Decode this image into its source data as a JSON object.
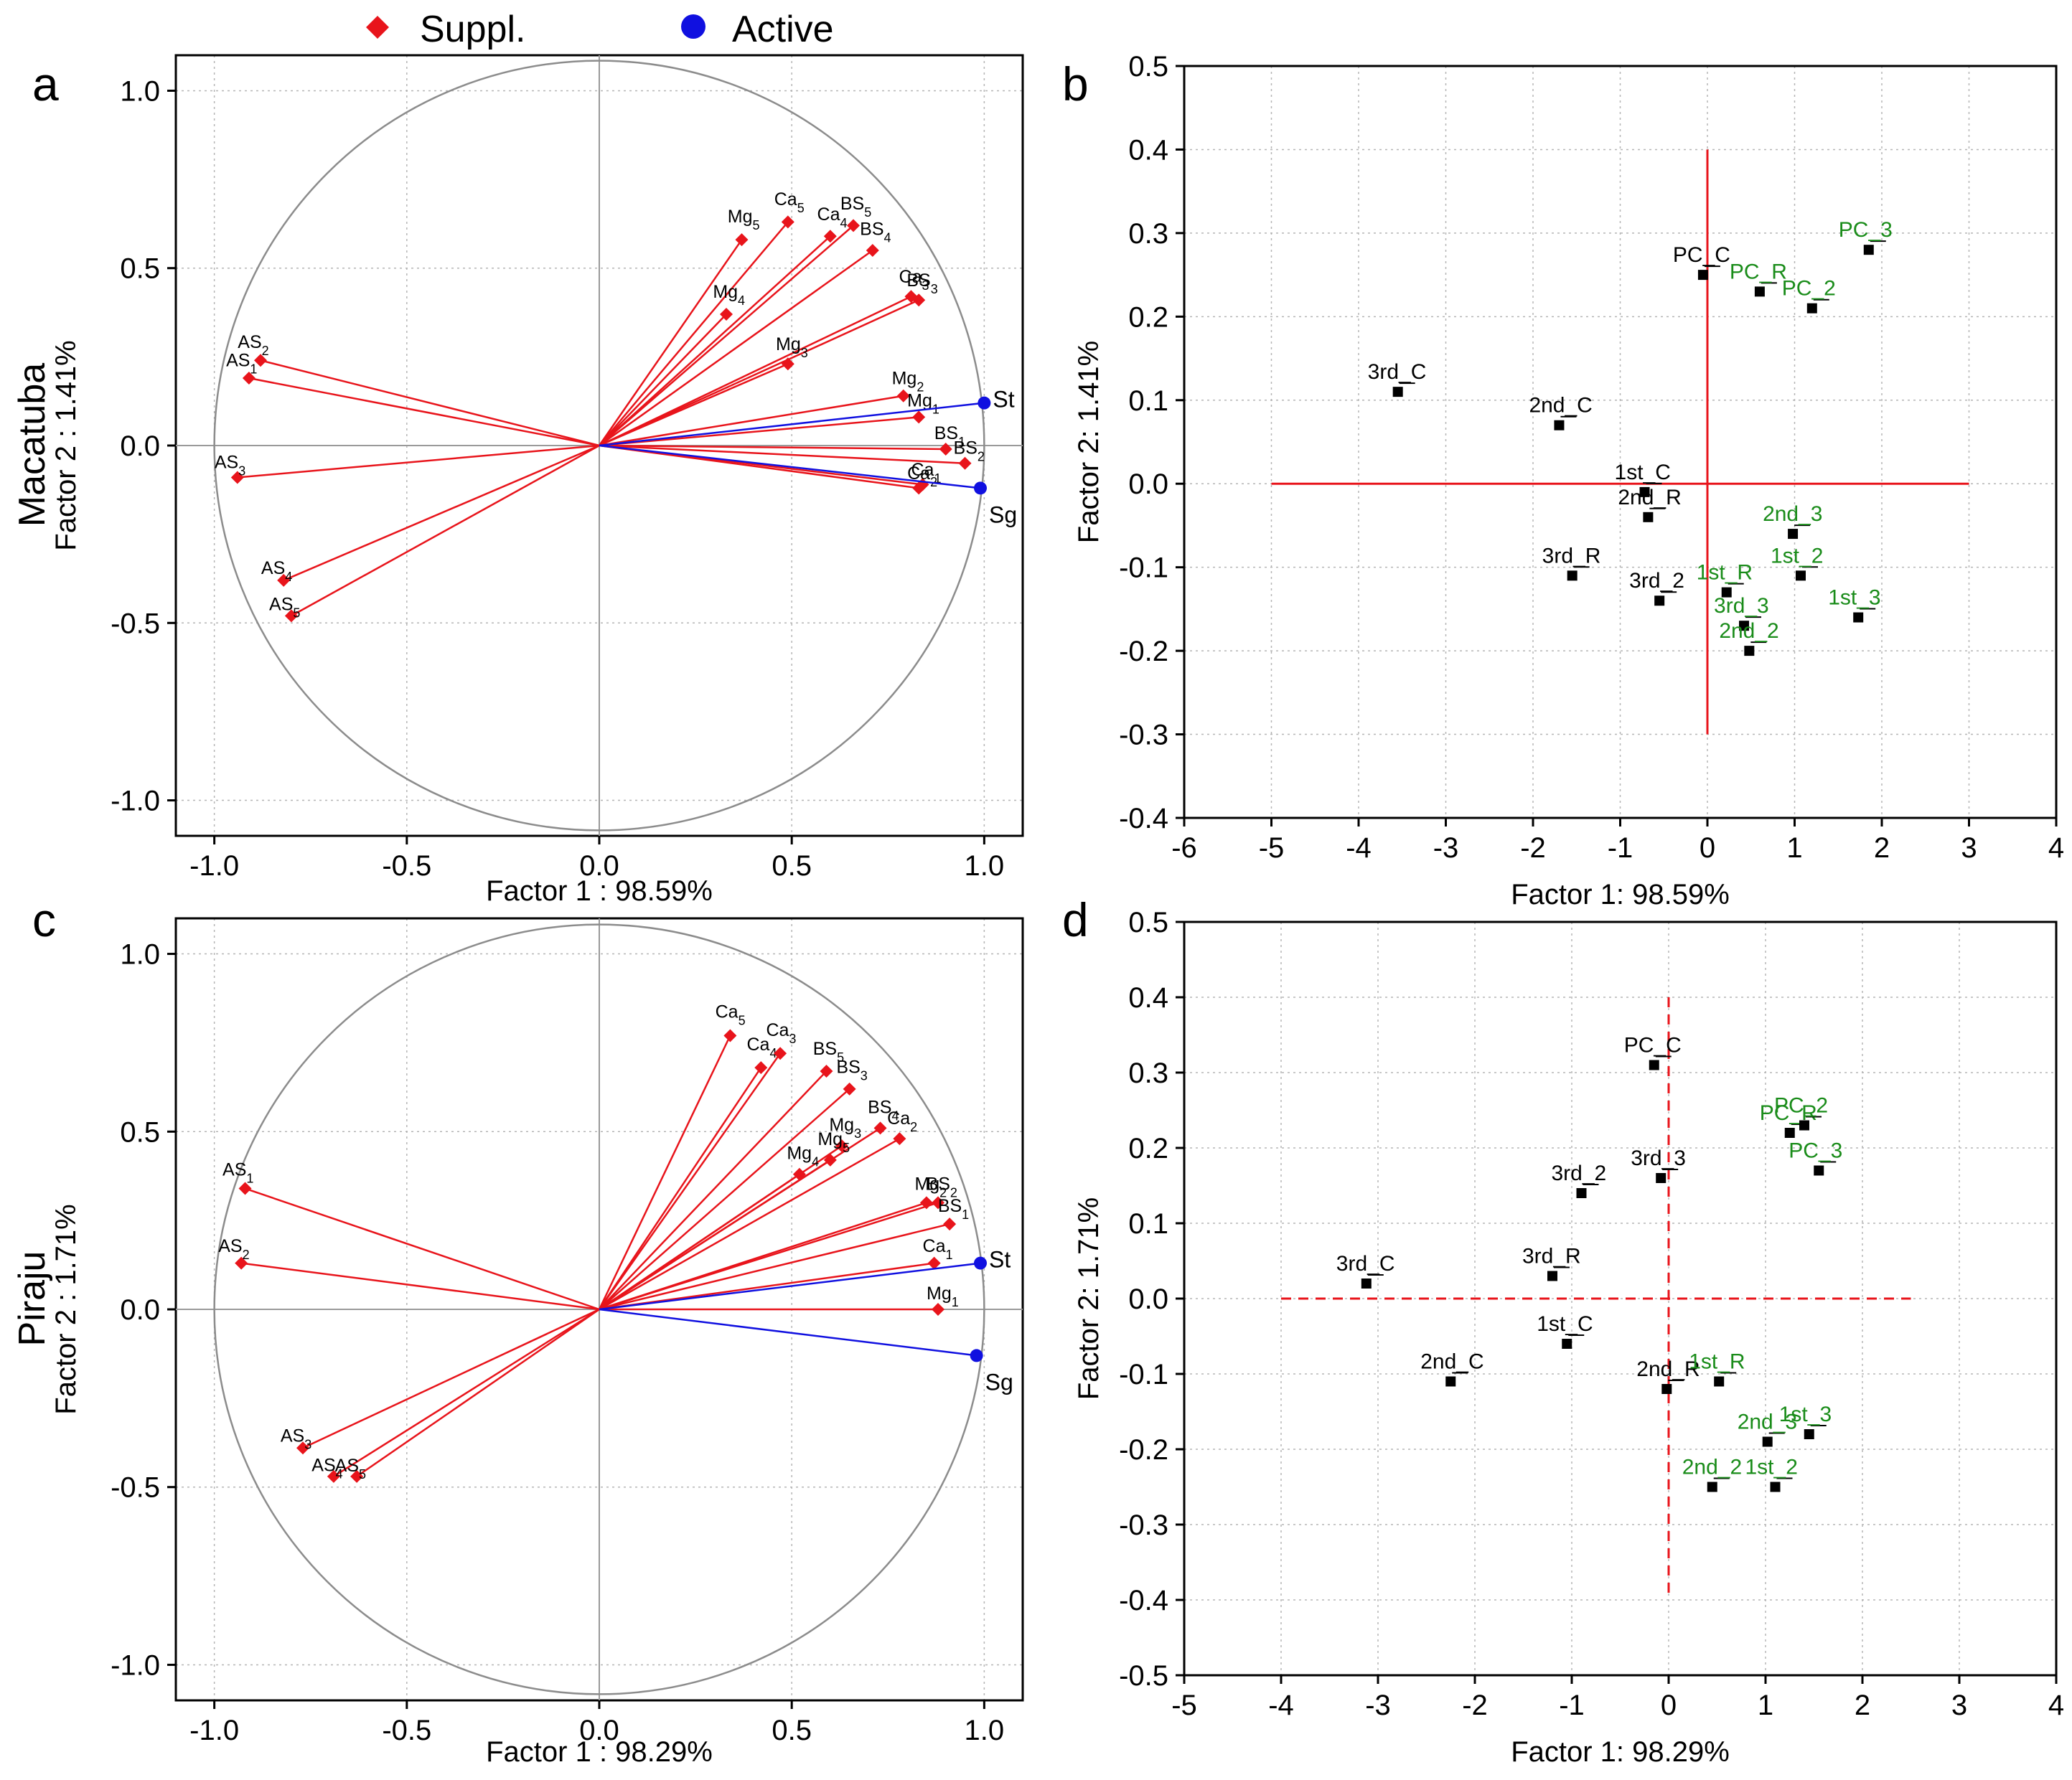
{
  "legend": {
    "supplementary_label": "Suppl.",
    "active_label": "Active",
    "supplementary_color": "#e8141b",
    "active_color": "#1010e0"
  },
  "colors": {
    "red": "#e8141b",
    "blue": "#1010e0",
    "green": "#1a8c1a",
    "black": "#000000"
  },
  "rows": {
    "top": "Macatuba",
    "bottom": "Piraju"
  },
  "panels": {
    "a": {
      "letter": "a"
    },
    "b": {
      "letter": "b"
    },
    "c": {
      "letter": "c"
    },
    "d": {
      "letter": "d"
    }
  },
  "chart_data": [
    {
      "panel": "a",
      "type": "scatter",
      "subtype": "correlation-circle",
      "xlabel": "Factor 1 : 98.59%",
      "ylabel": "Factor 2 :  1.41%",
      "xlim": [
        -1.1,
        1.1
      ],
      "ylim": [
        -1.1,
        1.1
      ],
      "xticks": [
        "-1.0",
        "-0.5",
        "0.0",
        "0.5",
        "1.0"
      ],
      "yticks": [
        "1.0",
        "0.5",
        "0.0",
        "-0.5",
        "-1.0"
      ],
      "active": [
        {
          "name": "St",
          "x": 1.0,
          "y": 0.12
        },
        {
          "name": "Sg",
          "x": 0.99,
          "y": -0.12
        }
      ],
      "supplementary": [
        {
          "name": "AS",
          "sub": "2",
          "x": -0.88,
          "y": 0.24
        },
        {
          "name": "AS",
          "sub": "1",
          "x": -0.91,
          "y": 0.19
        },
        {
          "name": "AS",
          "sub": "3",
          "x": -0.94,
          "y": -0.09
        },
        {
          "name": "AS",
          "sub": "4",
          "x": -0.82,
          "y": -0.38
        },
        {
          "name": "AS",
          "sub": "5",
          "x": -0.8,
          "y": -0.48
        },
        {
          "name": "Mg",
          "sub": "5",
          "x": 0.37,
          "y": 0.58
        },
        {
          "name": "Ca",
          "sub": "5",
          "x": 0.49,
          "y": 0.63
        },
        {
          "name": "Ca",
          "sub": "4",
          "x": 0.6,
          "y": 0.59
        },
        {
          "name": "BS",
          "sub": "5",
          "x": 0.66,
          "y": 0.62
        },
        {
          "name": "BS",
          "sub": "4",
          "x": 0.71,
          "y": 0.55
        },
        {
          "name": "Mg",
          "sub": "4",
          "x": 0.33,
          "y": 0.37
        },
        {
          "name": "Ca",
          "sub": "3",
          "x": 0.81,
          "y": 0.42
        },
        {
          "name": "BS",
          "sub": "3",
          "x": 0.83,
          "y": 0.41
        },
        {
          "name": "Mg",
          "sub": "3",
          "x": 0.49,
          "y": 0.23
        },
        {
          "name": "Mg",
          "sub": "2",
          "x": 0.79,
          "y": 0.14
        },
        {
          "name": "Mg",
          "sub": "1",
          "x": 0.83,
          "y": 0.08
        },
        {
          "name": "BS",
          "sub": "1",
          "x": 0.9,
          "y": -0.01
        },
        {
          "name": "BS",
          "sub": "2",
          "x": 0.95,
          "y": -0.05
        },
        {
          "name": "Ca",
          "sub": "1",
          "x": 0.84,
          "y": -0.11
        },
        {
          "name": "Ca",
          "sub": "2",
          "x": 0.83,
          "y": -0.12
        }
      ]
    },
    {
      "panel": "b",
      "type": "scatter",
      "xlabel": "Factor 1: 98.59%",
      "ylabel": "Factor 2:  1.41%",
      "xlim": [
        -6,
        4
      ],
      "ylim": [
        -0.4,
        0.5
      ],
      "xticks": [
        "-6",
        "-5",
        "-4",
        "-3",
        "-2",
        "-1",
        "0",
        "1",
        "2",
        "3",
        "4"
      ],
      "yticks": [
        "0.5",
        "0.4",
        "0.3",
        "0.2",
        "0.1",
        "0.0",
        "-0.1",
        "-0.2",
        "-0.3",
        "-0.4"
      ],
      "reference_lines": {
        "style": "solid",
        "x_range": [
          -5,
          3
        ],
        "y_range": [
          -0.3,
          0.4
        ]
      },
      "points": [
        {
          "name": "PC_C",
          "x": -0.05,
          "y": 0.25,
          "color": "black"
        },
        {
          "name": "PC_R",
          "x": 0.6,
          "y": 0.23,
          "color": "green"
        },
        {
          "name": "PC_3",
          "x": 1.85,
          "y": 0.28,
          "color": "green"
        },
        {
          "name": "PC_2",
          "x": 1.2,
          "y": 0.21,
          "color": "green"
        },
        {
          "name": "3rd_C",
          "x": -3.55,
          "y": 0.11,
          "color": "black"
        },
        {
          "name": "2nd_C",
          "x": -1.7,
          "y": 0.07,
          "color": "black"
        },
        {
          "name": "1st_C",
          "x": -0.72,
          "y": -0.01,
          "color": "black"
        },
        {
          "name": "2nd_R",
          "x": -0.68,
          "y": -0.04,
          "color": "black"
        },
        {
          "name": "3rd_R",
          "x": -1.55,
          "y": -0.11,
          "color": "black"
        },
        {
          "name": "3rd_2",
          "x": -0.55,
          "y": -0.14,
          "color": "black"
        },
        {
          "name": "1st_R",
          "x": 0.22,
          "y": -0.13,
          "color": "green"
        },
        {
          "name": "3rd_3",
          "x": 0.42,
          "y": -0.17,
          "color": "green"
        },
        {
          "name": "2nd_2",
          "x": 0.48,
          "y": -0.2,
          "color": "green"
        },
        {
          "name": "2nd_3",
          "x": 0.98,
          "y": -0.06,
          "color": "green"
        },
        {
          "name": "1st_2",
          "x": 1.07,
          "y": -0.11,
          "color": "green"
        },
        {
          "name": "1st_3",
          "x": 1.73,
          "y": -0.16,
          "color": "green"
        }
      ]
    },
    {
      "panel": "c",
      "type": "scatter",
      "subtype": "correlation-circle",
      "xlabel": "Factor 1 : 98.29%",
      "ylabel": "Factor 2 :  1.71%",
      "xlim": [
        -1.1,
        1.1
      ],
      "ylim": [
        -1.1,
        1.1
      ],
      "xticks": [
        "-1.0",
        "-0.5",
        "0.0",
        "0.5",
        "1.0"
      ],
      "yticks": [
        "1.0",
        "0.5",
        "0.0",
        "-0.5",
        "-1.0"
      ],
      "active": [
        {
          "name": "St",
          "x": 0.99,
          "y": 0.13
        },
        {
          "name": "Sg",
          "x": 0.98,
          "y": -0.13
        }
      ],
      "supplementary": [
        {
          "name": "AS",
          "sub": "1",
          "x": -0.92,
          "y": 0.34
        },
        {
          "name": "AS",
          "sub": "2",
          "x": -0.93,
          "y": 0.13
        },
        {
          "name": "AS",
          "sub": "3",
          "x": -0.77,
          "y": -0.39
        },
        {
          "name": "AS",
          "sub": "4",
          "x": -0.69,
          "y": -0.47
        },
        {
          "name": "AS",
          "sub": "5",
          "x": -0.63,
          "y": -0.47
        },
        {
          "name": "Ca",
          "sub": "5",
          "x": 0.34,
          "y": 0.77
        },
        {
          "name": "Ca",
          "sub": "4",
          "x": 0.42,
          "y": 0.68
        },
        {
          "name": "Ca",
          "sub": "3",
          "x": 0.47,
          "y": 0.72
        },
        {
          "name": "BS",
          "sub": "5",
          "x": 0.59,
          "y": 0.67
        },
        {
          "name": "BS",
          "sub": "3",
          "x": 0.65,
          "y": 0.62
        },
        {
          "name": "BS",
          "sub": "4",
          "x": 0.73,
          "y": 0.51
        },
        {
          "name": "Mg",
          "sub": "3",
          "x": 0.63,
          "y": 0.46
        },
        {
          "name": "Mg",
          "sub": "4",
          "x": 0.52,
          "y": 0.38
        },
        {
          "name": "Mg",
          "sub": "5",
          "x": 0.6,
          "y": 0.42
        },
        {
          "name": "Ca",
          "sub": "2",
          "x": 0.78,
          "y": 0.48
        },
        {
          "name": "Mg",
          "sub": "2",
          "x": 0.85,
          "y": 0.3
        },
        {
          "name": "BS",
          "sub": "2",
          "x": 0.88,
          "y": 0.3
        },
        {
          "name": "BS",
          "sub": "1",
          "x": 0.91,
          "y": 0.24
        },
        {
          "name": "Ca",
          "sub": "1",
          "x": 0.87,
          "y": 0.13
        },
        {
          "name": "Mg",
          "sub": "1",
          "x": 0.88,
          "y": 0.0
        }
      ]
    },
    {
      "panel": "d",
      "type": "scatter",
      "xlabel": "Factor 1: 98.29%",
      "ylabel": "Factor 2:  1.71%",
      "xlim": [
        -5,
        4
      ],
      "ylim": [
        -0.5,
        0.5
      ],
      "xticks": [
        "-5",
        "-4",
        "-3",
        "-2",
        "-1",
        "0",
        "1",
        "2",
        "3",
        "4"
      ],
      "yticks": [
        "0.5",
        "0.4",
        "0.3",
        "0.2",
        "0.1",
        "0.0",
        "-0.1",
        "-0.2",
        "-0.3",
        "-0.4",
        "-0.5"
      ],
      "reference_lines": {
        "style": "dashed",
        "x_range": [
          -4,
          2.5
        ],
        "y_range": [
          -0.4,
          0.4
        ]
      },
      "points": [
        {
          "name": "PC_C",
          "x": -0.15,
          "y": 0.31,
          "color": "black"
        },
        {
          "name": "PC_R",
          "x": 1.25,
          "y": 0.22,
          "color": "green"
        },
        {
          "name": "PC_2",
          "x": 1.4,
          "y": 0.23,
          "color": "green"
        },
        {
          "name": "PC_3",
          "x": 1.55,
          "y": 0.17,
          "color": "green"
        },
        {
          "name": "3rd_2",
          "x": -0.9,
          "y": 0.14,
          "color": "black"
        },
        {
          "name": "3rd_3",
          "x": -0.08,
          "y": 0.16,
          "color": "black"
        },
        {
          "name": "3rd_R",
          "x": -1.2,
          "y": 0.03,
          "color": "black"
        },
        {
          "name": "3rd_C",
          "x": -3.12,
          "y": 0.02,
          "color": "black"
        },
        {
          "name": "1st_C",
          "x": -1.05,
          "y": -0.06,
          "color": "black"
        },
        {
          "name": "2nd_C",
          "x": -2.25,
          "y": -0.11,
          "color": "black"
        },
        {
          "name": "2nd_R",
          "x": -0.02,
          "y": -0.12,
          "color": "black"
        },
        {
          "name": "1st_R",
          "x": 0.52,
          "y": -0.11,
          "color": "green"
        },
        {
          "name": "2nd_3",
          "x": 1.02,
          "y": -0.19,
          "color": "green"
        },
        {
          "name": "1st_3",
          "x": 1.45,
          "y": -0.18,
          "color": "green"
        },
        {
          "name": "2nd_2",
          "x": 0.45,
          "y": -0.25,
          "color": "green"
        },
        {
          "name": "1st_2",
          "x": 1.1,
          "y": -0.25,
          "color": "green"
        }
      ]
    }
  ]
}
